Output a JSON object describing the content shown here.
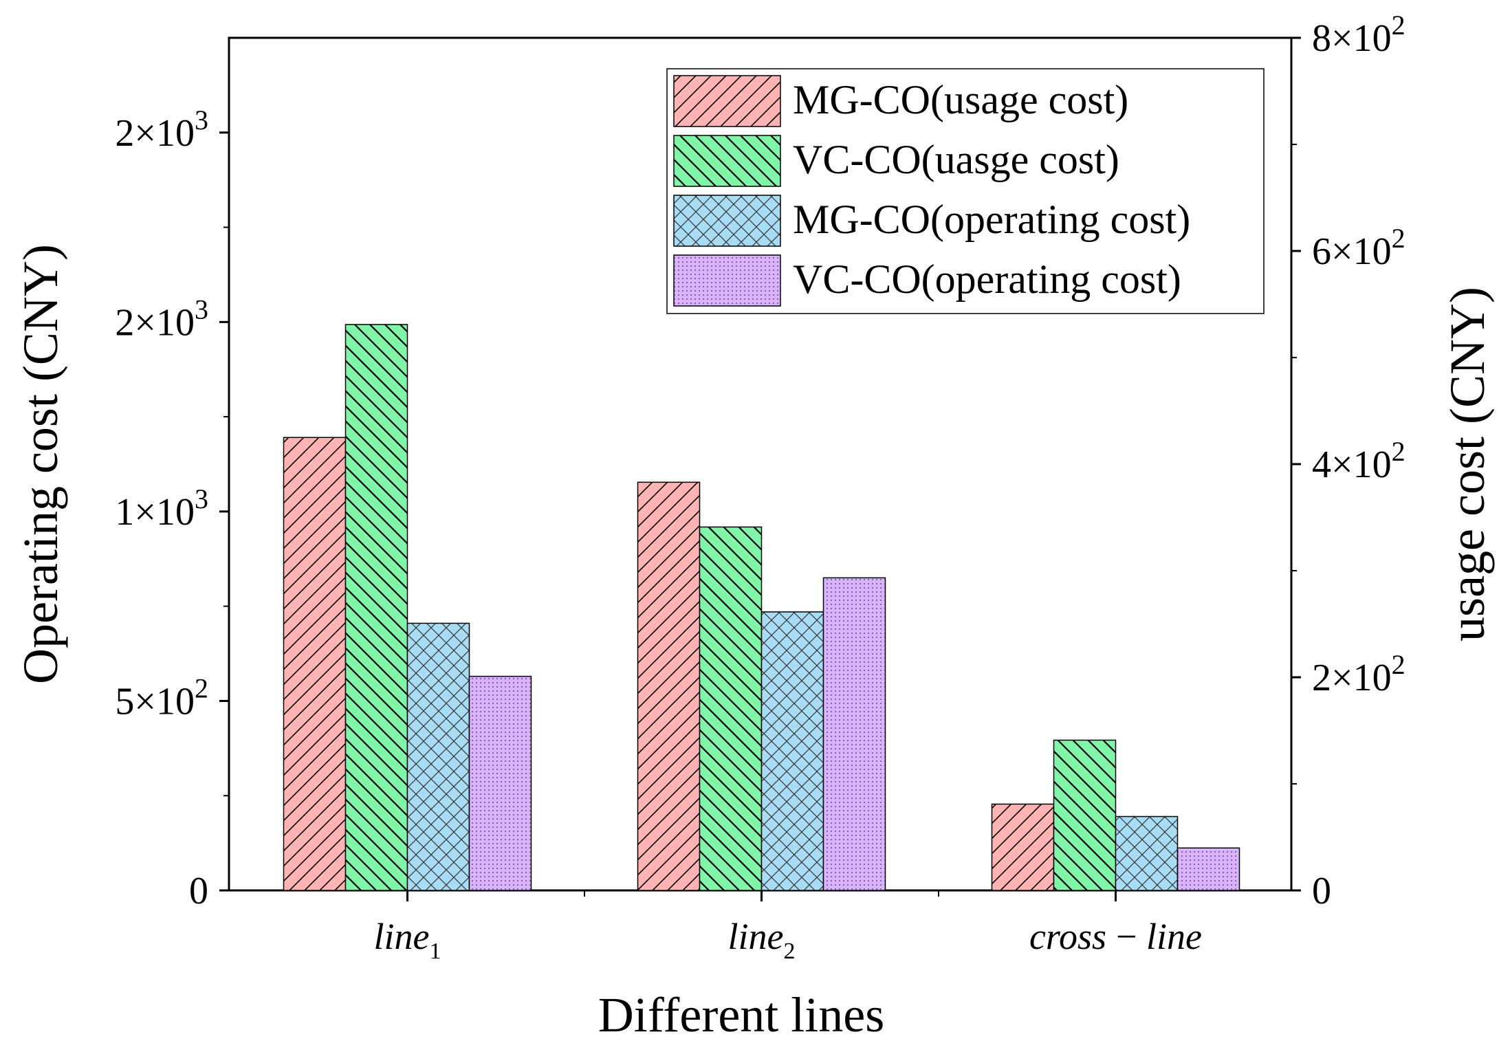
{
  "chart_data": {
    "type": "bar",
    "title": "",
    "xlabel": "Different lines",
    "ylabel": "Operating cost (CNY)",
    "y2label": "usage cost (CNY)",
    "categories": [
      {
        "base": "line",
        "sub": "1"
      },
      {
        "base": "line",
        "sub": "2"
      },
      {
        "base": "cross − line",
        "sub": ""
      }
    ],
    "ylim": [
      0,
      2250
    ],
    "y2lim": [
      0,
      800
    ],
    "yticks": [
      {
        "value": 0,
        "mantissa": "0",
        "exp": ""
      },
      {
        "value": 500,
        "mantissa": "5×10",
        "exp": "2"
      },
      {
        "value": 1000,
        "mantissa": "1×10",
        "exp": "3"
      },
      {
        "value": 1500,
        "mantissa": "2×10",
        "exp": "3"
      },
      {
        "value": 2000,
        "mantissa": "2×10",
        "exp": "3"
      }
    ],
    "y2ticks": [
      {
        "value": 0,
        "mantissa": "0",
        "exp": ""
      },
      {
        "value": 200,
        "mantissa": "2×10",
        "exp": "2"
      },
      {
        "value": 400,
        "mantissa": "4×10",
        "exp": "2"
      },
      {
        "value": 600,
        "mantissa": "6×10",
        "exp": "2"
      },
      {
        "value": 800,
        "mantissa": "8×10",
        "exp": "2"
      }
    ],
    "series": [
      {
        "name": "MG-CO(usage cost)",
        "axis": "right",
        "color": "#ffb3b3",
        "pattern": "diag-up",
        "values": [
          425,
          383,
          81
        ]
      },
      {
        "name": "VC-CO(uasge cost)",
        "axis": "right",
        "color": "#80f5a8",
        "pattern": "diag-down",
        "values": [
          531,
          341,
          141
        ]
      },
      {
        "name": "MG-CO(operating cost)",
        "axis": "left",
        "color": "#a8dcf5",
        "pattern": "cross",
        "values": [
          705,
          735,
          195
        ]
      },
      {
        "name": "VC-CO(operating cost)",
        "axis": "left",
        "color": "#d9b3ff",
        "pattern": "dots",
        "values": [
          565,
          825,
          112
        ]
      }
    ],
    "legend_position": "top-right",
    "grid": false
  }
}
